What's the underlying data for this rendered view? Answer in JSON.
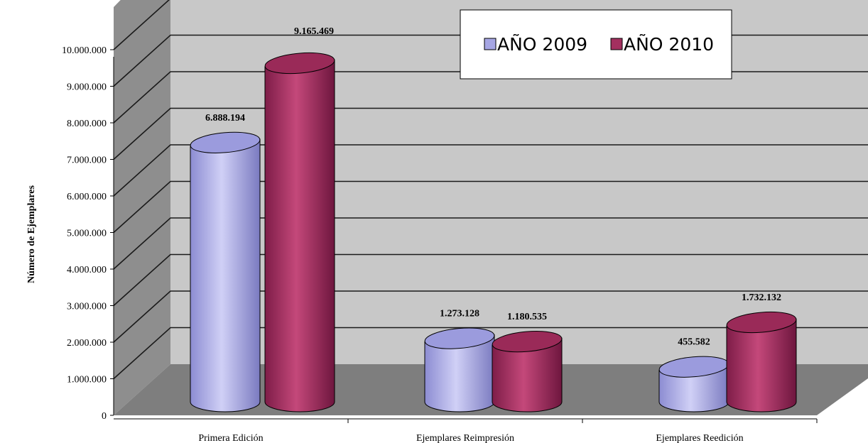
{
  "chart_data": {
    "type": "bar",
    "style": "3d-cylinder",
    "categories": [
      "Primera Edición",
      "Ejemplares Reimpresión",
      "Ejemplares Reedición"
    ],
    "series": [
      {
        "name": "AÑO 2009",
        "color": "#a6a6e4",
        "values": [
          6888194,
          1273128,
          455582
        ]
      },
      {
        "name": "AÑO 2010",
        "color": "#a3305f",
        "values": [
          9165469,
          1180535,
          1732132
        ]
      }
    ],
    "data_labels": [
      [
        "6.888.194",
        "1.273.128",
        "455.582"
      ],
      [
        "9.165.469",
        "1.180.535",
        "1.732.132"
      ]
    ],
    "ylabel": "Número de Ejemplares",
    "ylim": [
      0,
      10000000
    ],
    "y_ticks": [
      "0",
      "1.000.000",
      "2.000.000",
      "3.000.000",
      "4.000.000",
      "5.000.000",
      "6.000.000",
      "7.000.000",
      "8.000.000",
      "9.000.000",
      "10.000.000"
    ],
    "legend": {
      "position": "top-right",
      "entries": [
        "AÑO 2009",
        "AÑO 2010"
      ]
    },
    "grid": true
  },
  "colors": {
    "wall": "#c8c8c8",
    "side_wall": "#8e8e8e",
    "floor": "#7e7e7e",
    "grid": "#1a1a1a"
  }
}
